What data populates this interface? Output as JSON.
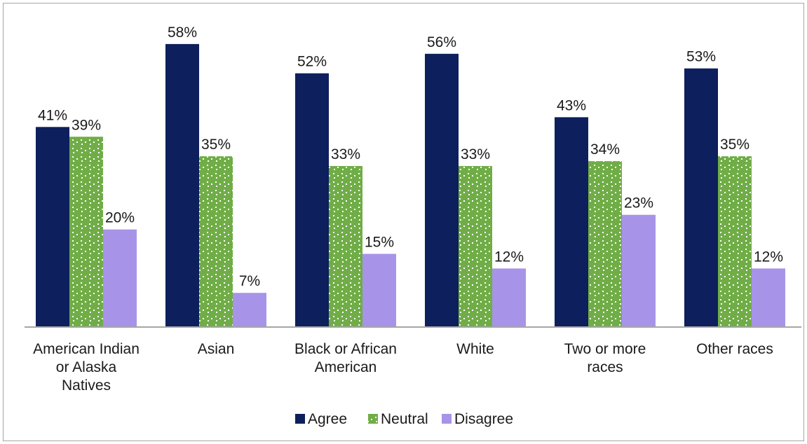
{
  "chart_data": {
    "type": "bar",
    "categories": [
      "American Indian or Alaska Natives",
      "Asian",
      "Black or African American",
      "White",
      "Two or more races",
      "Other races"
    ],
    "category_label_lines": [
      [
        "American Indian",
        "or Alaska",
        "Natives"
      ],
      [
        "Asian"
      ],
      [
        "Black or African",
        "American"
      ],
      [
        "White"
      ],
      [
        "Two or more",
        "races"
      ],
      [
        "Other races"
      ]
    ],
    "series": [
      {
        "name": "Agree",
        "values": [
          41,
          58,
          52,
          56,
          43,
          53
        ],
        "labels": [
          "41%",
          "58%",
          "52%",
          "56%",
          "43%",
          "53%"
        ]
      },
      {
        "name": "Neutral",
        "values": [
          39,
          35,
          33,
          33,
          34,
          35
        ],
        "labels": [
          "39%",
          "35%",
          "33%",
          "33%",
          "34%",
          "35%"
        ]
      },
      {
        "name": "Disagree",
        "values": [
          20,
          7,
          15,
          12,
          23,
          12
        ],
        "labels": [
          "20%",
          "7%",
          "15%",
          "12%",
          "23%",
          "12%"
        ]
      }
    ],
    "colors": {
      "Agree": "#0d1f5c",
      "Neutral": "#70ad47",
      "Disagree": "#a794e8"
    },
    "patterns": {
      "Neutral": "dotted-diamond"
    },
    "ylim": [
      0,
      62
    ],
    "grid": false,
    "legend_position": "bottom",
    "title": "",
    "xlabel": "",
    "ylabel": ""
  }
}
